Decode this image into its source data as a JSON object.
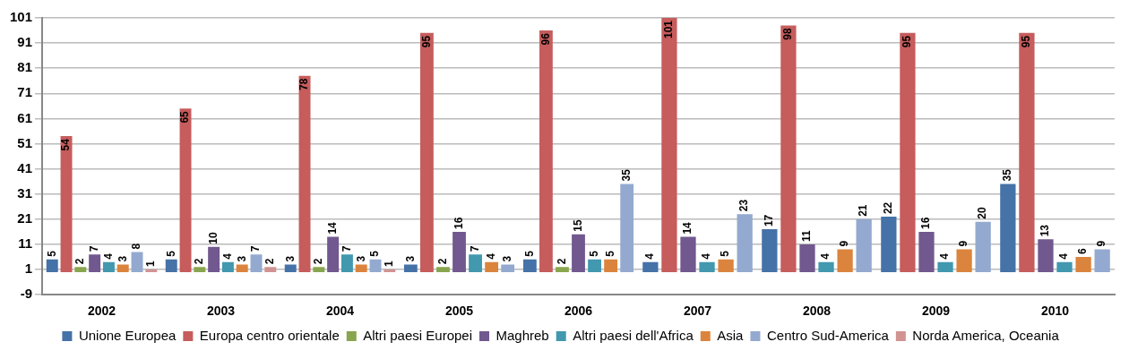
{
  "chart_data": {
    "type": "bar",
    "categories": [
      "2002",
      "2003",
      "2004",
      "2005",
      "2006",
      "2007",
      "2008",
      "2009",
      "2010"
    ],
    "series": [
      {
        "name": "Unione Europea",
        "color": "#4572a7",
        "values": [
          5,
          5,
          3,
          3,
          5,
          4,
          17,
          22,
          35
        ]
      },
      {
        "name": "Europa centro orientale",
        "color": "#c65c5c",
        "values": [
          54,
          65,
          78,
          95,
          96,
          101,
          98,
          95,
          95
        ]
      },
      {
        "name": "Altri paesi Europei",
        "color": "#89a54e",
        "values": [
          2,
          2,
          2,
          2,
          2,
          null,
          null,
          null,
          null
        ]
      },
      {
        "name": "Maghreb",
        "color": "#71588f",
        "values": [
          7,
          10,
          14,
          16,
          15,
          14,
          11,
          16,
          13
        ]
      },
      {
        "name": "Altri paesi dell'Africa",
        "color": "#4198af",
        "values": [
          4,
          4,
          7,
          7,
          5,
          4,
          4,
          4,
          4
        ]
      },
      {
        "name": "Asia",
        "color": "#db843d",
        "values": [
          3,
          3,
          3,
          4,
          5,
          5,
          9,
          9,
          6
        ]
      },
      {
        "name": "Centro Sud-America",
        "color": "#93a9cf",
        "values": [
          8,
          7,
          5,
          3,
          35,
          23,
          21,
          20,
          9
        ]
      },
      {
        "name": "Norda America, Oceania",
        "color": "#d19392",
        "values": [
          1,
          2,
          1,
          null,
          null,
          null,
          null,
          null,
          null
        ]
      }
    ],
    "ylim": [
      -9,
      101
    ],
    "yticks": [
      -9,
      1,
      11,
      21,
      31,
      41,
      51,
      61,
      71,
      81,
      91,
      101
    ],
    "grid": "y",
    "legend": "bottom",
    "data_labels": true
  }
}
